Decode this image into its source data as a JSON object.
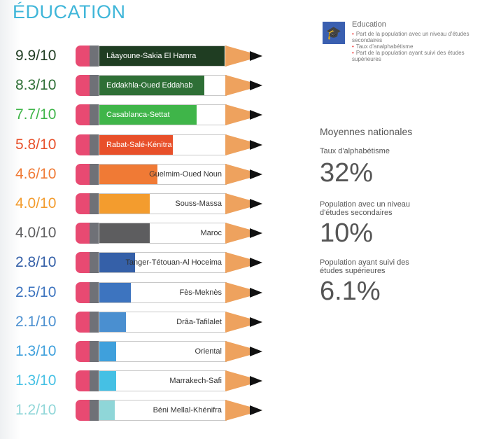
{
  "title": "ÉDUCATION",
  "legend": {
    "title": "Education",
    "icon": "graduation-cap-icon",
    "items": [
      "Part de la population avec un niveau d'études secondaires",
      "Taux d'analphabétisme",
      "Part de la population ayant suivi des études supérieures"
    ]
  },
  "national": {
    "heading": "Moyennes nationales",
    "stats": [
      {
        "label": "Taux d'alphabétisme",
        "value": "32%"
      },
      {
        "label": "Population avec un niveau d'études secondaires",
        "value": "10%"
      },
      {
        "label": "Population ayant suivi des études supérieures",
        "value": "6.1%"
      }
    ]
  },
  "chart_data": {
    "type": "bar",
    "title": "ÉDUCATION",
    "scale_max": 10,
    "categories": [
      "Lâayoune-Sakia El Hamra",
      "Eddakhla-Oued Eddahab",
      "Casablanca-Settat",
      "Rabat-Salé-Kénitra",
      "Guelmim-Oued Noun",
      "Souss-Massa",
      "Maroc",
      "Tanger-Tétouan-Al Hoceima",
      "Fès-Meknès",
      "Drâa-Tafilalet",
      "Oriental",
      "Marrakech-Safi",
      "Béni Mellal-Khénifra"
    ],
    "values": [
      9.9,
      8.3,
      7.7,
      5.8,
      4.6,
      4.0,
      4.0,
      2.8,
      2.5,
      2.1,
      1.3,
      1.3,
      1.2
    ],
    "labels": [
      "9.9/10",
      "8.3/10",
      "7.7/10",
      "5.8/10",
      "4.6/10",
      "4.0/10",
      "4.0/10",
      "2.8/10",
      "2.5/10",
      "2.1/10",
      "1.3/10",
      "1.3/10",
      "1.2/10"
    ],
    "colors": [
      "#1f3d22",
      "#2e6f36",
      "#3fb549",
      "#e8502a",
      "#f07a35",
      "#f39c2e",
      "#5d5d5f",
      "#3560a8",
      "#3d74bf",
      "#4a8fd0",
      "#3fa0dc",
      "#45c0e4",
      "#8fd6d8"
    ]
  }
}
